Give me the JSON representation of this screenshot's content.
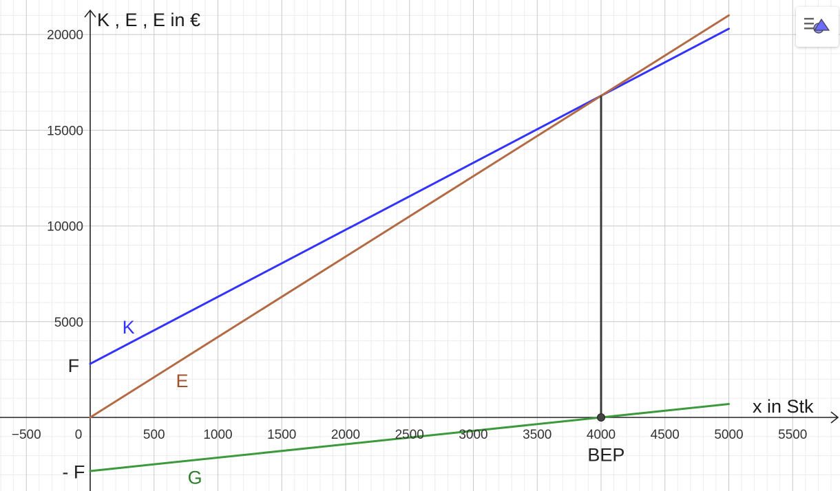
{
  "chart_data": {
    "type": "line",
    "x_axis": {
      "label": "x in Stk",
      "range": [
        -600,
        5800
      ],
      "ticks": [
        -500,
        0,
        500,
        1000,
        1500,
        2000,
        2500,
        3000,
        3500,
        4000,
        4500,
        5000,
        5500
      ],
      "tick_labels": [
        "−500",
        "0",
        "500",
        "1000",
        "1500",
        "2000",
        "2500",
        "3000",
        "3500",
        "4000",
        "4500",
        "5000",
        "5500"
      ]
    },
    "y_axis": {
      "label": "K , E , E in €",
      "range": [
        -3000,
        21500
      ],
      "ticks": [
        5000,
        10000,
        15000,
        20000
      ],
      "tick_labels": [
        "5000",
        "10000",
        "15000",
        "20000"
      ]
    },
    "grid": true,
    "series": [
      {
        "name": "K",
        "color": "#3333ff",
        "x": [
          0,
          5000
        ],
        "y": [
          2800,
          20300
        ]
      },
      {
        "name": "E",
        "color": "#b36b45",
        "x": [
          0,
          5000
        ],
        "y": [
          0,
          21000
        ]
      },
      {
        "name": "G",
        "color": "#3c9a3c",
        "x": [
          0,
          5000
        ],
        "y": [
          -2800,
          700
        ]
      }
    ],
    "series_labels": [
      {
        "text": "K",
        "color": "#3333ff",
        "x": 300,
        "y": 4700
      },
      {
        "text": "E",
        "color": "#a0522d",
        "x": 720,
        "y": 1900
      },
      {
        "text": "G",
        "color": "#2e7d2e",
        "x": 820,
        "y": -3150
      }
    ],
    "annotations": [
      {
        "text": "F",
        "x": -130,
        "y": 2700,
        "color": "#222222"
      },
      {
        "text": "- F",
        "x": -130,
        "y": -2850,
        "color": "#222222"
      },
      {
        "text": "BEP",
        "x": 4040,
        "y": -1950,
        "color": "#222222"
      }
    ],
    "break_even": {
      "x": 4000,
      "y": 16800
    }
  },
  "toolbar": {
    "style_icon": "graphics-style-icon"
  }
}
